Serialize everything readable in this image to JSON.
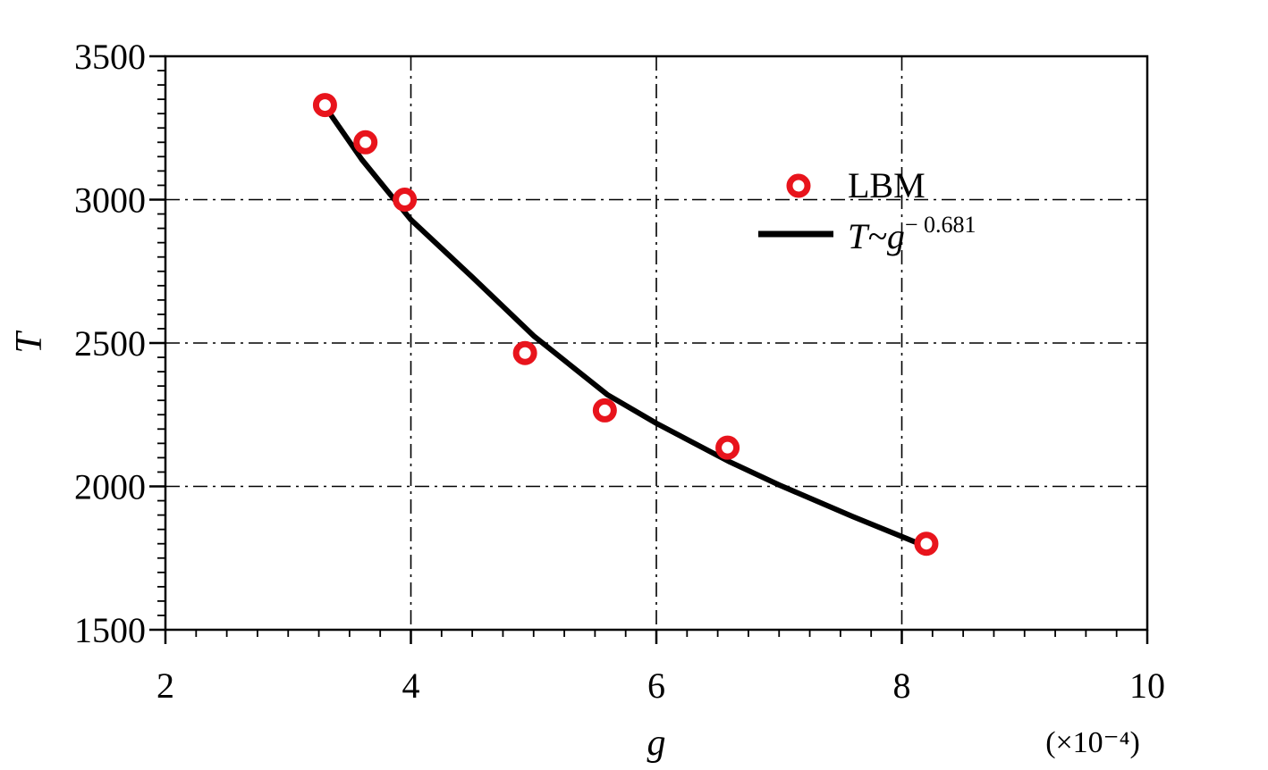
{
  "chart_data": {
    "type": "scatter",
    "xlabel": "g",
    "ylabel": "T",
    "x_scale_note": "(×10⁻⁴)",
    "xlim": [
      2,
      10
    ],
    "ylim": [
      1500,
      3500
    ],
    "xticks": [
      "2",
      "4",
      "6",
      "8",
      "10"
    ],
    "yticks": [
      "1500",
      "2000",
      "2500",
      "3000",
      "3500"
    ],
    "grid": true,
    "legend_position": "top-right",
    "series": [
      {
        "name": "LBM",
        "kind": "scatter",
        "marker": "open-circle",
        "color": "#e8141c",
        "x": [
          3.3,
          3.63,
          3.95,
          4.93,
          5.58,
          6.58,
          8.2
        ],
        "y": [
          3330,
          3200,
          3000,
          2465,
          2265,
          2135,
          1800
        ]
      },
      {
        "name": "T~g",
        "name_exponent": "− 0.681",
        "kind": "line",
        "color": "#000000",
        "x": [
          3.3,
          3.6,
          4.0,
          4.5,
          5.0,
          5.6,
          6.0,
          6.6,
          7.0,
          7.6,
          8.2
        ],
        "y": [
          3325,
          3140,
          2930,
          2730,
          2525,
          2320,
          2220,
          2085,
          2005,
          1895,
          1790
        ]
      }
    ]
  }
}
